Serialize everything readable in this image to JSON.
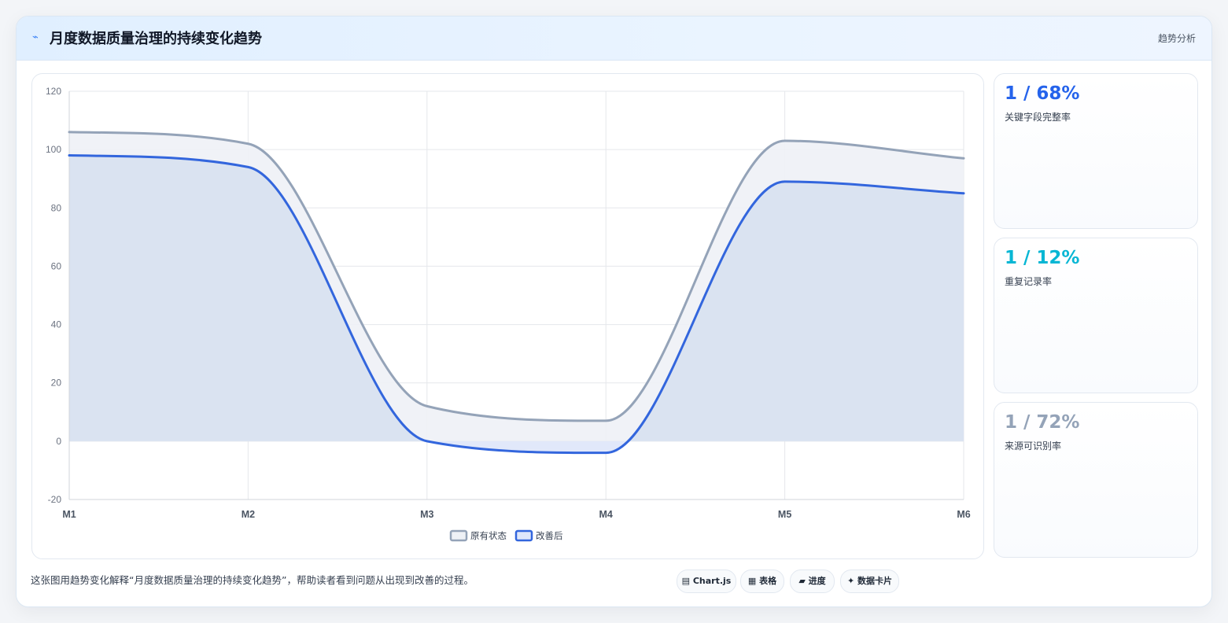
{
  "header": {
    "icon": "⌁",
    "title": "月度数据质量治理的持续变化趋势",
    "tag": "趋势分析"
  },
  "chart_data": {
    "type": "area",
    "categories": [
      "M1",
      "M2",
      "M3",
      "M4",
      "M5",
      "M6"
    ],
    "series": [
      {
        "name": "原有状态",
        "values": [
          106,
          102,
          12,
          7,
          103,
          97
        ],
        "color": "#94a3b8",
        "fill": "#eef1f6"
      },
      {
        "name": "改善后",
        "values": [
          98,
          94,
          0,
          -4,
          89,
          85
        ],
        "color": "#3366dd",
        "fill": "#d8e1f0"
      }
    ],
    "ylim": [
      -20,
      120
    ],
    "yticks": [
      120,
      100,
      80,
      60,
      40,
      20,
      0,
      -20
    ],
    "grid": true,
    "legend_position": "bottom",
    "negative_fill": "#e1e8fa"
  },
  "stats": [
    {
      "value": "1 / 68%",
      "label": "关键字段完整率",
      "color": "#2563eb"
    },
    {
      "value": "1 / 12%",
      "label": "重复记录率",
      "color": "#06b6d4"
    },
    {
      "value": "1 / 72%",
      "label": "来源可识别率",
      "color": "#94a3b8"
    }
  ],
  "footer": {
    "description": "这张图用趋势变化解释“月度数据质量治理的持续变化趋势”，帮助读者看到问题从出现到改善的过程。",
    "chips": [
      "▤ Chart.js",
      "▦ 表格",
      "▰ 进度",
      "✦ 数据卡片"
    ]
  }
}
